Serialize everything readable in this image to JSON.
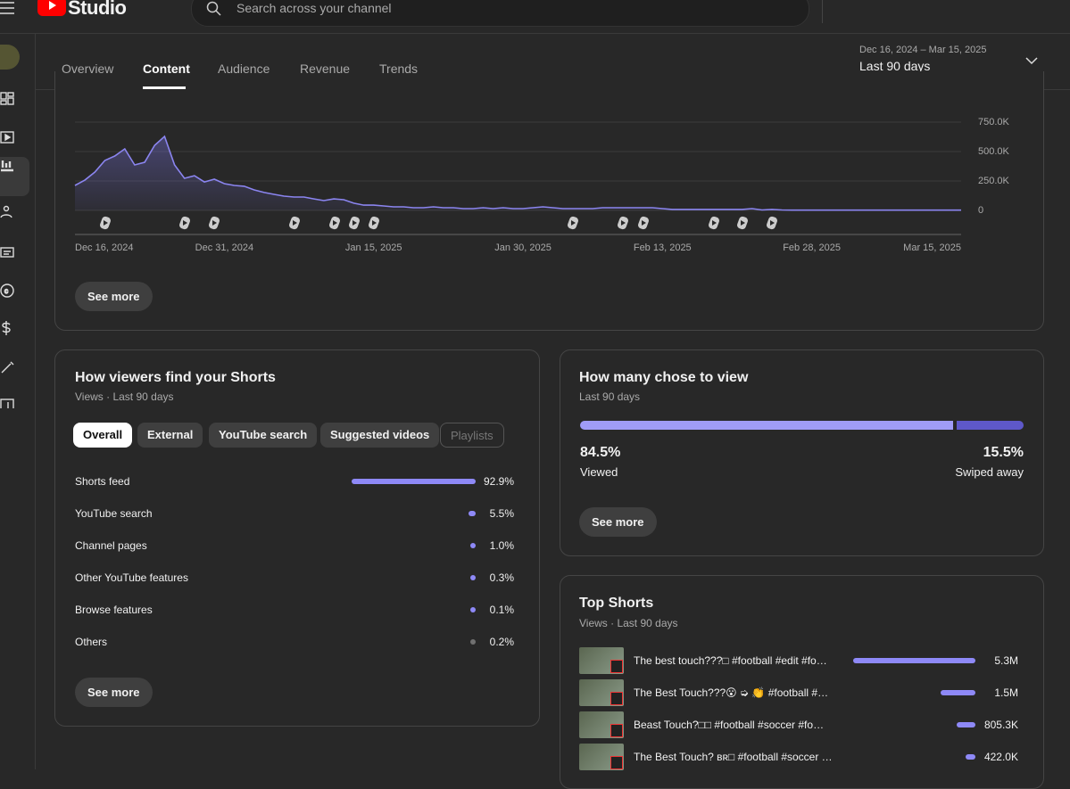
{
  "header": {
    "logo": "Studio",
    "search_placeholder": "Search across your channel"
  },
  "tabs": {
    "items": [
      "Overview",
      "Content",
      "Audience",
      "Revenue",
      "Trends"
    ]
  },
  "date_range": {
    "range": "Dec 16, 2024 – Mar 15, 2025",
    "label": "Last 90 days"
  },
  "chart_data": {
    "type": "line",
    "color": "#8b85f0",
    "grid": true,
    "categories": [
      "Dec 16, 2024",
      null,
      null,
      null,
      null,
      null,
      null,
      null,
      null,
      null,
      null,
      null,
      null,
      null,
      null,
      "Dec 31, 2024",
      null,
      null,
      null,
      null,
      null,
      null,
      null,
      null,
      null,
      null,
      null,
      null,
      null,
      null,
      "Jan 15, 2025",
      null,
      null,
      null,
      null,
      null,
      null,
      null,
      null,
      null,
      null,
      null,
      null,
      null,
      null,
      "Jan 30, 2025",
      null,
      null,
      null,
      null,
      null,
      null,
      null,
      null,
      null,
      null,
      null,
      null,
      null,
      "Feb 13, 2025",
      null,
      null,
      null,
      null,
      null,
      null,
      null,
      null,
      null,
      null,
      null,
      null,
      null,
      null,
      "Feb 28, 2025",
      null,
      null,
      null,
      null,
      null,
      null,
      null,
      null,
      null,
      null,
      null,
      null,
      null,
      null,
      "Mar 15, 2025"
    ],
    "values": [
      212000,
      258000,
      326000,
      424000,
      462000,
      523000,
      386000,
      409000,
      553000,
      629000,
      386000,
      273000,
      295000,
      242000,
      265000,
      227000,
      212000,
      205000,
      174000,
      152000,
      136000,
      121000,
      114000,
      114000,
      98000,
      83000,
      98000,
      91000,
      61000,
      45000,
      45000,
      38000,
      30000,
      30000,
      23000,
      23000,
      30000,
      23000,
      23000,
      15000,
      15000,
      23000,
      15000,
      23000,
      15000,
      15000,
      23000,
      30000,
      23000,
      15000,
      15000,
      15000,
      15000,
      23000,
      23000,
      23000,
      23000,
      23000,
      23000,
      15000,
      8000,
      8000,
      8000,
      8000,
      8000,
      8000,
      8000,
      8000,
      15000,
      4000,
      8000,
      4000,
      2000,
      2000,
      2000,
      2000,
      2000,
      2000,
      2000,
      2000,
      2000,
      2000,
      2000,
      2000,
      2000,
      2000,
      2000,
      2000,
      2000,
      2000
    ],
    "ylim": [
      0,
      750000
    ],
    "yticks": [
      {
        "value": 0,
        "label": "0"
      },
      {
        "value": 250000,
        "label": "250.0K"
      },
      {
        "value": 500000,
        "label": "500.0K"
      },
      {
        "value": 750000,
        "label": "750.0K"
      }
    ]
  },
  "chart_card": {
    "button": "See more"
  },
  "traffic": {
    "title": "How viewers find your Shorts",
    "subtitle": "Views · Last 90 days",
    "filters": [
      "Overall",
      "External",
      "YouTube search",
      "Suggested videos",
      "Playlists"
    ],
    "sources": [
      "Shorts feed",
      "YouTube search",
      "Channel pages",
      "Other YouTube features",
      "Browse features",
      "Others"
    ],
    "values": [
      92.9,
      5.5,
      1.0,
      0.3,
      0.1,
      0.2
    ],
    "value_labels": [
      "92.9%",
      "5.5%",
      "1.0%",
      "0.3%",
      "0.1%",
      "0.2%"
    ],
    "colors": [
      "#8e89f7",
      "#8e89f7",
      "#8e89f7",
      "#8e89f7",
      "#8e89f7",
      "#717171"
    ],
    "button": "See more"
  },
  "choice": {
    "title": "How many chose to view",
    "subtitle": "Last 90 days",
    "values": [
      84.5,
      15.5
    ],
    "value_labels": [
      "84.5%",
      "15.5%"
    ],
    "labels": [
      "Viewed",
      "Swiped away"
    ],
    "colors": [
      "#a09cf7",
      "#5e58c9"
    ],
    "button": "See more"
  },
  "top_shorts": {
    "title": "Top Shorts",
    "subtitle": "Views · Last 90 days",
    "titles": [
      "The best touch???□ #football #edit #fo…",
      "The Best Touch???😮 ➭ 👏 #football #…",
      "Beast Touch?□□ #football #soccer #fo…",
      "The Best Touch? ʙʀ□ #football #soccer …"
    ],
    "values": [
      5300000,
      1500000,
      805300,
      422000
    ],
    "value_labels": [
      "5.3M",
      "1.5M",
      "805.3K",
      "422.0K"
    ],
    "color": "#8e89f7"
  }
}
